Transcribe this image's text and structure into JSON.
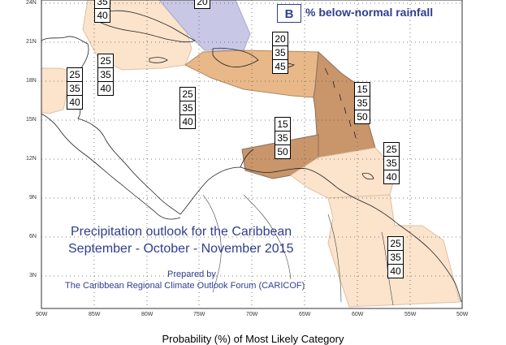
{
  "legend": {
    "letter": "B",
    "text": "% below-normal rainfall"
  },
  "title": {
    "line1": "Precipitation outlook for the Caribbean",
    "line2": "September - October - November 2015"
  },
  "credit": {
    "line1": "Prepared by",
    "line2": "The Caribbean Regional Climate Outlook Forum (CARICOF)"
  },
  "footer": "Probability (%) of Most Likely Category",
  "lat_labels": [
    "24N",
    "21N",
    "18N",
    "15N",
    "12N",
    "9N",
    "6N",
    "3N"
  ],
  "lon_labels": [
    "90W",
    "85W",
    "80W",
    "75W",
    "70W",
    "65W",
    "60W",
    "55W",
    "50W"
  ],
  "prob_boxes": [
    {
      "id": "top-partial",
      "values": [
        "35",
        "40"
      ]
    },
    {
      "id": "bahamas-top",
      "values": [
        "20"
      ]
    },
    {
      "id": "central-america-west",
      "values": [
        "25",
        "35",
        "40"
      ]
    },
    {
      "id": "cuba-south",
      "values": [
        "25",
        "35",
        "40"
      ]
    },
    {
      "id": "jamaica",
      "values": [
        "25",
        "35",
        "40"
      ]
    },
    {
      "id": "hispaniola",
      "values": [
        "20",
        "35",
        "45"
      ]
    },
    {
      "id": "lesser-antilles",
      "values": [
        "15",
        "35",
        "50"
      ]
    },
    {
      "id": "southern-caribbean",
      "values": [
        "15",
        "35",
        "50"
      ]
    },
    {
      "id": "trinidad",
      "values": [
        "25",
        "35",
        "40"
      ]
    },
    {
      "id": "guianas",
      "values": [
        "25",
        "35",
        "40"
      ]
    }
  ],
  "colors": {
    "light": "#fbe3cc",
    "medium": "#e8b888",
    "dark": "#c9956a",
    "above": "#c8c8e6",
    "text": "#2f3f8f"
  }
}
